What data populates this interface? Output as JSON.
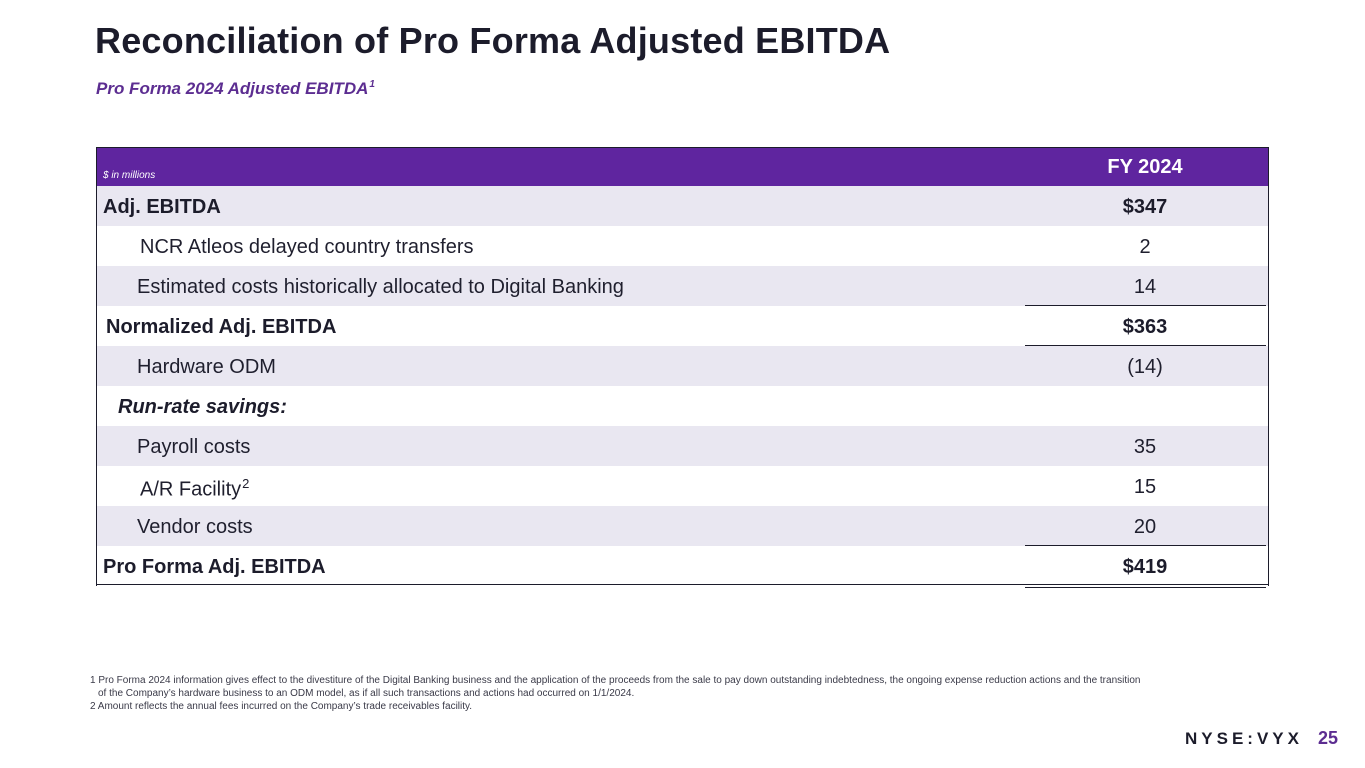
{
  "title": "Reconciliation of Pro Forma Adjusted EBITDA",
  "subtitle": {
    "text": "Pro Forma 2024 Adjusted EBITDA",
    "note": "1"
  },
  "table": {
    "units": "$ in millions",
    "column": "FY 2024",
    "rows": [
      {
        "label": "Adj. EBITDA",
        "value": "$347"
      },
      {
        "label": "NCR Atleos delayed country transfers",
        "value": "2"
      },
      {
        "label": "Estimated costs historically allocated to Digital Banking",
        "value": "14"
      },
      {
        "label": "Normalized Adj. EBITDA",
        "value": "$363"
      },
      {
        "label": "Hardware ODM",
        "value": "(14)"
      },
      {
        "label": "Run-rate savings:",
        "value": ""
      },
      {
        "label": "Payroll costs",
        "value": "35"
      },
      {
        "label": "A/R Facility",
        "note": "2",
        "value": "15"
      },
      {
        "label": "Vendor costs",
        "value": "20"
      },
      {
        "label": "Pro Forma Adj. EBITDA",
        "value": "$419"
      }
    ]
  },
  "footnotes": [
    "1 Pro Forma 2024 information gives effect to the divestiture of the Digital Banking business and the application of the proceeds from the sale to pay down outstanding indebtedness, the ongoing expense reduction actions and the transition of the Company’s hardware business to an ODM model, as if all such transactions and actions had occurred on 1/1/2024.",
    "2 Amount reflects the annual fees incurred on the Company’s trade receivables facility."
  ],
  "ticker": "NYSE:VYX",
  "page_number": "25",
  "colors": {
    "accent": "#5f259f",
    "row_shade": "#e9e7f1",
    "text": "#1c1c2b"
  }
}
